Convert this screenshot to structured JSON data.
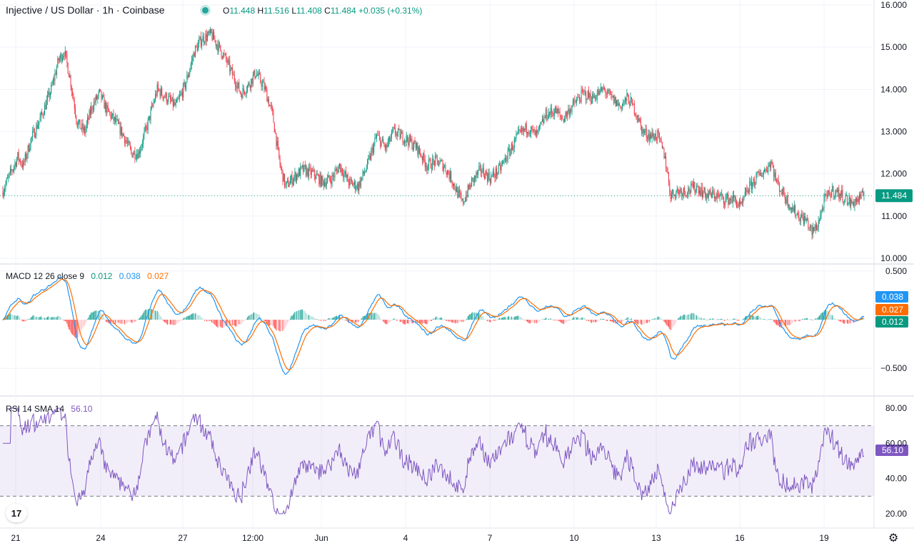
{
  "header": {
    "symbol_title": "Injective / US Dollar · 1h · Coinbase",
    "ohlc": {
      "o_label": "O",
      "o": "11.448",
      "h_label": "H",
      "h": "11.516",
      "l_label": "L",
      "l": "11.408",
      "c_label": "C",
      "c": "11.484",
      "change": "+0.035 (+0.31%)"
    }
  },
  "price_pane": {
    "y_ticks": [
      "16.000",
      "15.000",
      "14.000",
      "13.000",
      "12.000",
      "11.000",
      "10.000"
    ],
    "y_range": [
      10.0,
      16.0
    ],
    "last_price_label": "11.484",
    "last_price": 11.484,
    "up_color": "#089981",
    "down_color": "#f23645"
  },
  "macd_pane": {
    "label": "MACD 12 26 close 9",
    "values": [
      "0.012",
      "0.038",
      "0.027"
    ],
    "y_ticks": [
      "0.500",
      "−0.500"
    ],
    "y_range": [
      -0.55,
      0.5
    ],
    "badges": [
      "0.038",
      "0.027",
      "0.012"
    ],
    "macd_color": "#2196f3",
    "signal_color": "#ff6d00"
  },
  "rsi_pane": {
    "label": "RSI 14 SMA 14",
    "value": "56.10",
    "y_ticks": [
      "80.00",
      "60.00",
      "40.00",
      "20.00"
    ],
    "y_range": [
      20,
      80
    ],
    "upper_band": 70,
    "lower_band": 30,
    "badge": "56.10",
    "color": "#7e57c2"
  },
  "x_axis": {
    "ticks": [
      "21",
      "24",
      "27",
      "12:00",
      "Jun",
      "4",
      "7",
      "10",
      "13",
      "16",
      "19"
    ]
  },
  "chart_data": {
    "type": "candlestick",
    "title": "Injective / US Dollar · 1h · Coinbase",
    "interval": "1h",
    "x_range": [
      "21",
      "19"
    ],
    "price_anchors": [
      [
        0,
        11.6
      ],
      [
        8,
        12.0
      ],
      [
        16,
        12.4
      ],
      [
        22,
        12.2
      ],
      [
        30,
        12.8
      ],
      [
        42,
        13.4
      ],
      [
        52,
        14.0
      ],
      [
        60,
        14.7
      ],
      [
        66,
        14.9
      ],
      [
        72,
        14.3
      ],
      [
        80,
        13.2
      ],
      [
        88,
        13.0
      ],
      [
        96,
        13.6
      ],
      [
        104,
        13.9
      ],
      [
        112,
        13.5
      ],
      [
        122,
        13.2
      ],
      [
        130,
        12.9
      ],
      [
        138,
        12.5
      ],
      [
        146,
        12.5
      ],
      [
        156,
        13.2
      ],
      [
        166,
        14.0
      ],
      [
        176,
        13.8
      ],
      [
        186,
        13.6
      ],
      [
        196,
        14.1
      ],
      [
        206,
        14.9
      ],
      [
        214,
        15.2
      ],
      [
        224,
        15.3
      ],
      [
        232,
        15.0
      ],
      [
        240,
        14.7
      ],
      [
        248,
        14.3
      ],
      [
        256,
        13.9
      ],
      [
        264,
        14.1
      ],
      [
        272,
        14.4
      ],
      [
        282,
        14.0
      ],
      [
        290,
        13.4
      ],
      [
        298,
        12.2
      ],
      [
        304,
        11.7
      ],
      [
        312,
        11.9
      ],
      [
        322,
        12.1
      ],
      [
        334,
        12.0
      ],
      [
        344,
        11.8
      ],
      [
        354,
        11.9
      ],
      [
        362,
        12.2
      ],
      [
        372,
        11.8
      ],
      [
        382,
        11.7
      ],
      [
        392,
        12.2
      ],
      [
        402,
        12.9
      ],
      [
        412,
        12.6
      ],
      [
        420,
        13.0
      ],
      [
        428,
        12.9
      ],
      [
        436,
        12.8
      ],
      [
        446,
        12.6
      ],
      [
        456,
        12.2
      ],
      [
        466,
        12.3
      ],
      [
        474,
        12.2
      ],
      [
        482,
        11.9
      ],
      [
        490,
        11.5
      ],
      [
        494,
        11.3
      ],
      [
        504,
        11.8
      ],
      [
        514,
        12.1
      ],
      [
        524,
        11.9
      ],
      [
        534,
        12.1
      ],
      [
        544,
        12.5
      ],
      [
        554,
        12.9
      ],
      [
        564,
        13.1
      ],
      [
        574,
        12.9
      ],
      [
        584,
        13.4
      ],
      [
        594,
        13.5
      ],
      [
        602,
        13.3
      ],
      [
        612,
        13.6
      ],
      [
        624,
        13.9
      ],
      [
        634,
        13.8
      ],
      [
        646,
        14.0
      ],
      [
        654,
        13.8
      ],
      [
        664,
        13.6
      ],
      [
        672,
        13.8
      ],
      [
        680,
        13.5
      ],
      [
        688,
        13.0
      ],
      [
        696,
        12.9
      ],
      [
        704,
        12.9
      ],
      [
        712,
        12.4
      ],
      [
        718,
        11.5
      ],
      [
        726,
        11.6
      ],
      [
        736,
        11.6
      ],
      [
        746,
        11.7
      ],
      [
        756,
        11.5
      ],
      [
        766,
        11.5
      ],
      [
        776,
        11.4
      ],
      [
        786,
        11.4
      ],
      [
        794,
        11.2
      ],
      [
        800,
        11.6
      ],
      [
        810,
        11.9
      ],
      [
        820,
        12.1
      ],
      [
        826,
        12.3
      ],
      [
        832,
        11.8
      ],
      [
        840,
        11.5
      ],
      [
        848,
        11.2
      ],
      [
        856,
        11.0
      ],
      [
        864,
        10.9
      ],
      [
        870,
        10.6
      ],
      [
        876,
        10.8
      ],
      [
        884,
        11.4
      ],
      [
        892,
        11.6
      ],
      [
        902,
        11.5
      ],
      [
        912,
        11.3
      ],
      [
        920,
        11.4
      ],
      [
        926,
        11.484
      ]
    ]
  }
}
